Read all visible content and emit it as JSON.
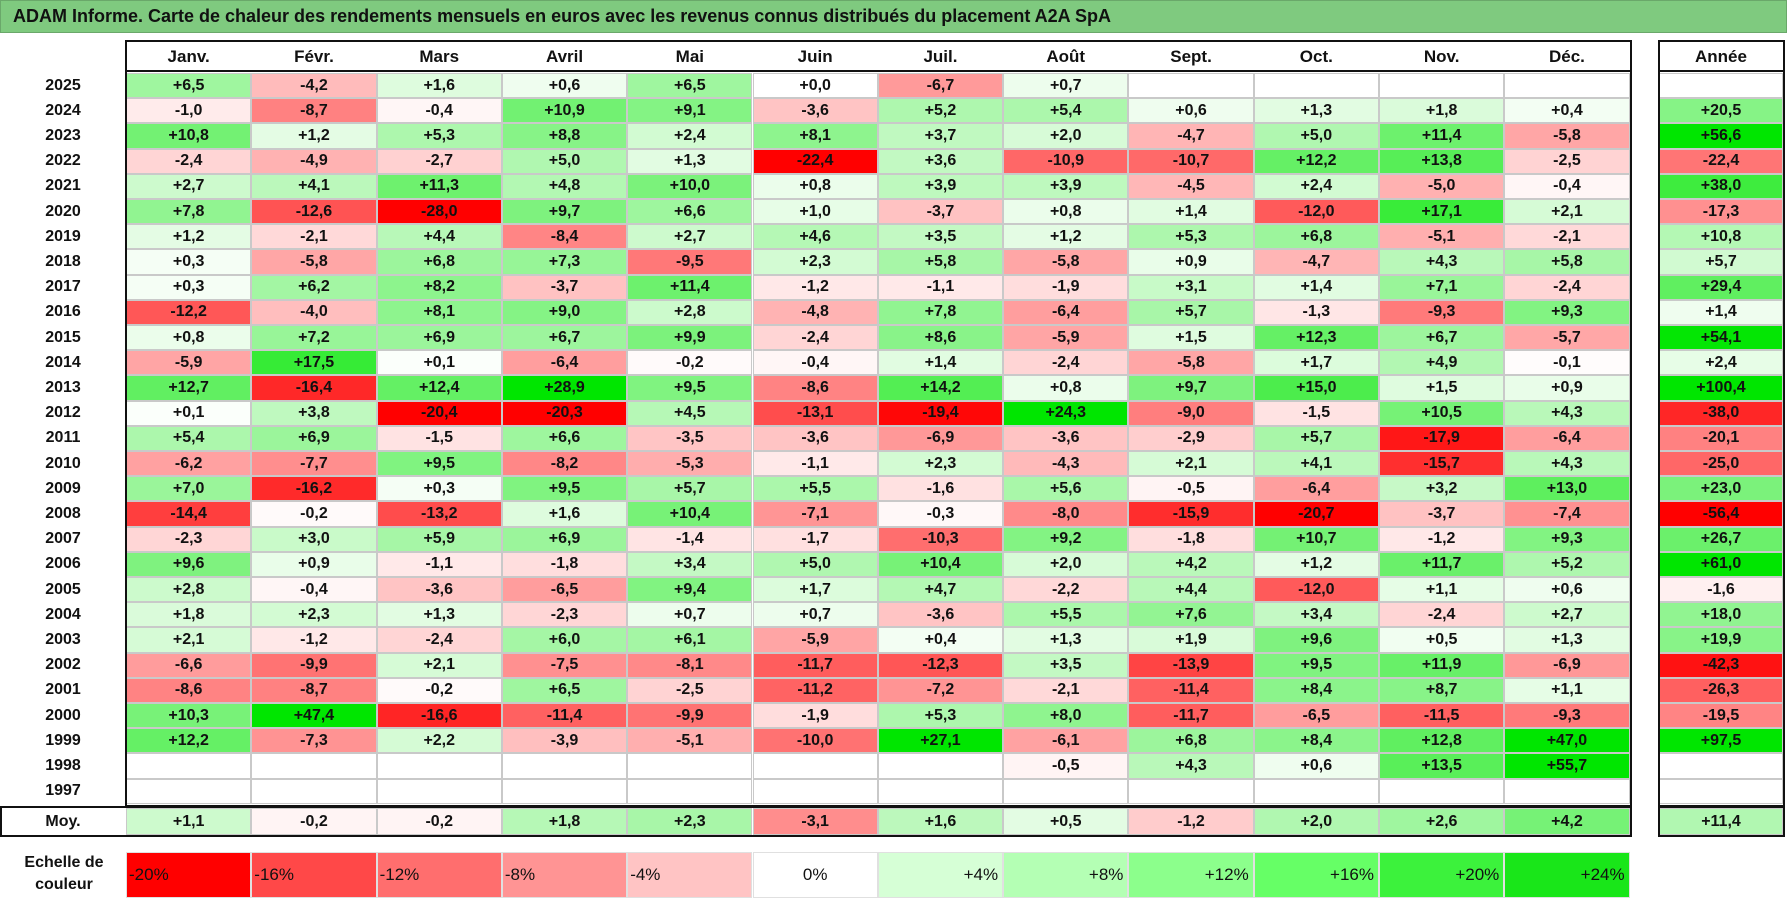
{
  "title": "ADAM Informe. Carte de chaleur des rendements mensuels en euros avec les revenus connus distribués du placement A2A SpA",
  "chart_data": {
    "type": "heatmap",
    "title": "ADAM Informe. Carte de chaleur des rendements mensuels en euros avec les revenus connus distribués du placement A2A SpA",
    "columns": [
      "Janv.",
      "Févr.",
      "Mars",
      "Avril",
      "Mai",
      "Juin",
      "Juil.",
      "Août",
      "Sept.",
      "Oct.",
      "Nov.",
      "Déc."
    ],
    "year_column": "Année",
    "rows": [
      {
        "year": "2025",
        "values": [
          "+6,5",
          "-4,2",
          "+1,6",
          "+0,6",
          "+6,5",
          "+0,0",
          "-6,7",
          "+0,7",
          "",
          "",
          "",
          ""
        ],
        "annual": ""
      },
      {
        "year": "2024",
        "values": [
          "-1,0",
          "-8,7",
          "-0,4",
          "+10,9",
          "+9,1",
          "-3,6",
          "+5,2",
          "+5,4",
          "+0,6",
          "+1,3",
          "+1,8",
          "+0,4"
        ],
        "annual": "+20,5"
      },
      {
        "year": "2023",
        "values": [
          "+10,8",
          "+1,2",
          "+5,3",
          "+8,8",
          "+2,4",
          "+8,1",
          "+3,7",
          "+2,0",
          "-4,7",
          "+5,0",
          "+11,4",
          "-5,8"
        ],
        "annual": "+56,6"
      },
      {
        "year": "2022",
        "values": [
          "-2,4",
          "-4,9",
          "-2,7",
          "+5,0",
          "+1,3",
          "-22,4",
          "+3,6",
          "-10,9",
          "-10,7",
          "+12,2",
          "+13,8",
          "-2,5"
        ],
        "annual": "-22,4"
      },
      {
        "year": "2021",
        "values": [
          "+2,7",
          "+4,1",
          "+11,3",
          "+4,8",
          "+10,0",
          "+0,8",
          "+3,9",
          "+3,9",
          "-4,5",
          "+2,4",
          "-5,0",
          "-0,4"
        ],
        "annual": "+38,0"
      },
      {
        "year": "2020",
        "values": [
          "+7,8",
          "-12,6",
          "-28,0",
          "+9,7",
          "+6,6",
          "+1,0",
          "-3,7",
          "+0,8",
          "+1,4",
          "-12,0",
          "+17,1",
          "+2,1"
        ],
        "annual": "-17,3"
      },
      {
        "year": "2019",
        "values": [
          "+1,2",
          "-2,1",
          "+4,4",
          "-8,4",
          "+2,7",
          "+4,6",
          "+3,5",
          "+1,2",
          "+5,3",
          "+6,8",
          "-5,1",
          "-2,1"
        ],
        "annual": "+10,8"
      },
      {
        "year": "2018",
        "values": [
          "+0,3",
          "-5,8",
          "+6,8",
          "+7,3",
          "-9,5",
          "+2,3",
          "+5,8",
          "-5,8",
          "+0,9",
          "-4,7",
          "+4,3",
          "+5,8"
        ],
        "annual": "+5,7"
      },
      {
        "year": "2017",
        "values": [
          "+0,3",
          "+6,2",
          "+8,2",
          "-3,7",
          "+11,4",
          "-1,2",
          "-1,1",
          "-1,9",
          "+3,1",
          "+1,4",
          "+7,1",
          "-2,4"
        ],
        "annual": "+29,4"
      },
      {
        "year": "2016",
        "values": [
          "-12,2",
          "-4,0",
          "+8,1",
          "+9,0",
          "+2,8",
          "-4,8",
          "+7,8",
          "-6,4",
          "+5,7",
          "-1,3",
          "-9,3",
          "+9,3"
        ],
        "annual": "+1,4"
      },
      {
        "year": "2015",
        "values": [
          "+0,8",
          "+7,2",
          "+6,9",
          "+6,7",
          "+9,9",
          "-2,4",
          "+8,6",
          "-5,9",
          "+1,5",
          "+12,3",
          "+6,7",
          "-5,7"
        ],
        "annual": "+54,1"
      },
      {
        "year": "2014",
        "values": [
          "-5,9",
          "+17,5",
          "+0,1",
          "-6,4",
          "-0,2",
          "-0,4",
          "+1,4",
          "-2,4",
          "-5,8",
          "+1,7",
          "+4,9",
          "-0,1"
        ],
        "annual": "+2,4"
      },
      {
        "year": "2013",
        "values": [
          "+12,7",
          "-16,4",
          "+12,4",
          "+28,9",
          "+9,5",
          "-8,6",
          "+14,2",
          "+0,8",
          "+9,7",
          "+15,0",
          "+1,5",
          "+0,9"
        ],
        "annual": "+100,4"
      },
      {
        "year": "2012",
        "values": [
          "+0,1",
          "+3,8",
          "-20,4",
          "-20,3",
          "+4,5",
          "-13,1",
          "-19,4",
          "+24,3",
          "-9,0",
          "-1,5",
          "+10,5",
          "+4,3"
        ],
        "annual": "-38,0"
      },
      {
        "year": "2011",
        "values": [
          "+5,4",
          "+6,9",
          "-1,5",
          "+6,6",
          "-3,5",
          "-3,6",
          "-6,9",
          "-3,6",
          "-2,9",
          "+5,7",
          "-17,9",
          "-6,4"
        ],
        "annual": "-20,1"
      },
      {
        "year": "2010",
        "values": [
          "-6,2",
          "-7,7",
          "+9,5",
          "-8,2",
          "-5,3",
          "-1,1",
          "+2,3",
          "-4,3",
          "+2,1",
          "+4,1",
          "-15,7",
          "+4,3"
        ],
        "annual": "-25,0"
      },
      {
        "year": "2009",
        "values": [
          "+7,0",
          "-16,2",
          "+0,3",
          "+9,5",
          "+5,7",
          "+5,5",
          "-1,6",
          "+5,6",
          "-0,5",
          "-6,4",
          "+3,2",
          "+13,0"
        ],
        "annual": "+23,0"
      },
      {
        "year": "2008",
        "values": [
          "-14,4",
          "-0,2",
          "-13,2",
          "+1,6",
          "+10,4",
          "-7,1",
          "-0,3",
          "-8,0",
          "-15,9",
          "-20,7",
          "-3,7",
          "-7,4"
        ],
        "annual": "-56,4"
      },
      {
        "year": "2007",
        "values": [
          "-2,3",
          "+3,0",
          "+5,9",
          "+6,9",
          "-1,4",
          "-1,7",
          "-10,3",
          "+9,2",
          "-1,8",
          "+10,7",
          "-1,2",
          "+9,3"
        ],
        "annual": "+26,7"
      },
      {
        "year": "2006",
        "values": [
          "+9,6",
          "+0,9",
          "-1,1",
          "-1,8",
          "+3,4",
          "+5,0",
          "+10,4",
          "+2,0",
          "+4,2",
          "+1,2",
          "+11,7",
          "+5,2"
        ],
        "annual": "+61,0"
      },
      {
        "year": "2005",
        "values": [
          "+2,8",
          "-0,4",
          "-3,6",
          "-6,5",
          "+9,4",
          "+1,7",
          "+4,7",
          "-2,2",
          "+4,4",
          "-12,0",
          "+1,1",
          "+0,6"
        ],
        "annual": "-1,6"
      },
      {
        "year": "2004",
        "values": [
          "+1,8",
          "+2,3",
          "+1,3",
          "-2,3",
          "+0,7",
          "+0,7",
          "-3,6",
          "+5,5",
          "+7,6",
          "+3,4",
          "-2,4",
          "+2,7"
        ],
        "annual": "+18,0"
      },
      {
        "year": "2003",
        "values": [
          "+2,1",
          "-1,2",
          "-2,4",
          "+6,0",
          "+6,1",
          "-5,9",
          "+0,4",
          "+1,3",
          "+1,9",
          "+9,6",
          "+0,5",
          "+1,3"
        ],
        "annual": "+19,9"
      },
      {
        "year": "2002",
        "values": [
          "-6,6",
          "-9,9",
          "+2,1",
          "-7,5",
          "-8,1",
          "-11,7",
          "-12,3",
          "+3,5",
          "-13,9",
          "+9,5",
          "+11,9",
          "-6,9"
        ],
        "annual": "-42,3"
      },
      {
        "year": "2001",
        "values": [
          "-8,6",
          "-8,7",
          "-0,2",
          "+6,5",
          "-2,5",
          "-11,2",
          "-7,2",
          "-2,1",
          "-11,4",
          "+8,4",
          "+8,7",
          "+1,1"
        ],
        "annual": "-26,3"
      },
      {
        "year": "2000",
        "values": [
          "+10,3",
          "+47,4",
          "-16,6",
          "-11,4",
          "-9,9",
          "-1,9",
          "+5,3",
          "+8,0",
          "-11,7",
          "-6,5",
          "-11,5",
          "-9,3"
        ],
        "annual": "-19,5"
      },
      {
        "year": "1999",
        "values": [
          "+12,2",
          "-7,3",
          "+2,2",
          "-3,9",
          "-5,1",
          "-10,0",
          "+27,1",
          "-6,1",
          "+6,8",
          "+8,4",
          "+12,8",
          "+47,0"
        ],
        "annual": "+97,5"
      },
      {
        "year": "1998",
        "values": [
          "",
          "",
          "",
          "",
          "",
          "",
          "",
          "-0,5",
          "+4,3",
          "+0,6",
          "+13,5",
          "+55,7"
        ],
        "annual": ""
      },
      {
        "year": "1997",
        "values": [
          "",
          "",
          "",
          "",
          "",
          "",
          "",
          "",
          "",
          "",
          "",
          ""
        ],
        "annual": ""
      }
    ],
    "average": {
      "label": "Moy.",
      "values": [
        "+1,1",
        "-0,2",
        "-0,2",
        "+1,8",
        "+2,3",
        "-3,1",
        "+1,6",
        "+0,5",
        "-1,2",
        "+2,0",
        "+2,6",
        "+4,2"
      ],
      "annual": "+11,4"
    },
    "scale": {
      "label": "Echelle de couleur",
      "stops": [
        "-20%",
        "-16%",
        "-12%",
        "-8%",
        "-4%",
        "0%",
        "+4%",
        "+8%",
        "+12%",
        "+16%",
        "+20%",
        "+24%"
      ],
      "colors": [
        "#ff0000",
        "#ff4848",
        "#ff6e6e",
        "#ff9494",
        "#ffc4c4",
        "#ffffff",
        "#d6ffd6",
        "#b4ffb4",
        "#8cff8c",
        "#66ff66",
        "#3cf23c",
        "#19e619"
      ]
    }
  }
}
